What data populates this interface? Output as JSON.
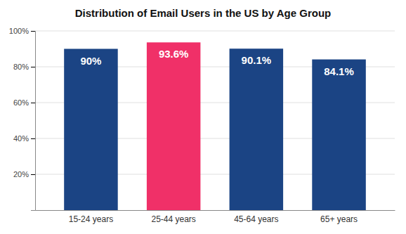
{
  "chart_data": {
    "type": "bar",
    "title": "Distribution of Email Users in the US by Age Group",
    "categories": [
      "15-24 years",
      "25-44 years",
      "45-64 years",
      "65+ years"
    ],
    "values": [
      90.0,
      93.6,
      90.1,
      84.1
    ],
    "value_labels": [
      "90%",
      "93.6%",
      "90.1%",
      "84.1%"
    ],
    "colors": [
      "#1b4484",
      "#f03068",
      "#1b4484",
      "#1b4484"
    ],
    "ylim": [
      0,
      100
    ],
    "yticks": [
      {
        "value": 20,
        "label": "20%"
      },
      {
        "value": 40,
        "label": "40%"
      },
      {
        "value": 60,
        "label": "60%"
      },
      {
        "value": 80,
        "label": "80%"
      },
      {
        "value": 100,
        "label": "100%"
      }
    ],
    "grid": true,
    "data_labels": true
  }
}
